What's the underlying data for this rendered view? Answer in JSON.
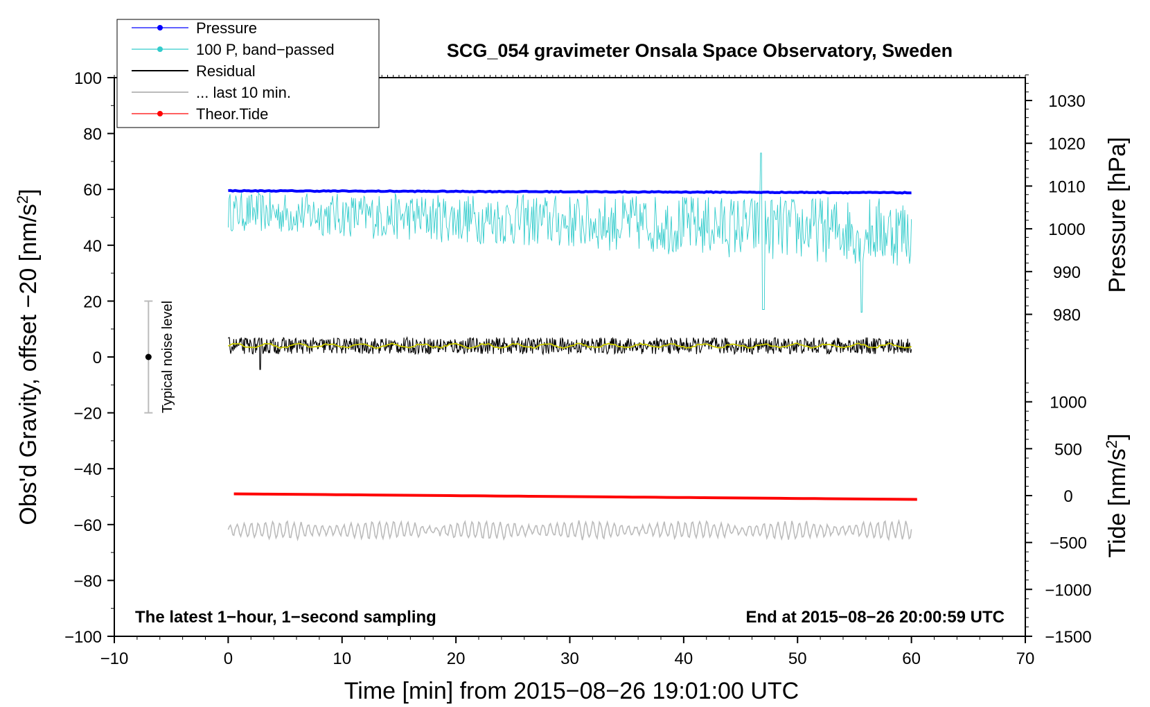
{
  "chart_data": {
    "type": "line",
    "title": "SCG_054 gravimeter Onsala Space Observatory, Sweden",
    "xlabel": "Time [min] from 2015−08−26 19:01:00 UTC",
    "ylabel_left_main": "Obs'd Gravity, offset −20 [nm/s",
    "ylabel_left_sup": "2",
    "ylabel_left_tail": "]",
    "ylabel_right_pressure": "Pressure [hPa]",
    "ylabel_right_tide_main": "Tide [nm/s",
    "ylabel_right_tide_sup": "2",
    "ylabel_right_tide_tail": "]",
    "xlim": [
      -10,
      70
    ],
    "ylim": [
      -100,
      100
    ],
    "pressure_range": [
      972,
      1036.5
    ],
    "tide_range": [
      -1500,
      1500
    ],
    "x_ticks": [
      "−10",
      "0",
      "10",
      "20",
      "30",
      "40",
      "50",
      "60",
      "70"
    ],
    "x_tick_values": [
      -10,
      0,
      10,
      20,
      30,
      40,
      50,
      60,
      70
    ],
    "y_ticks": [
      "100",
      "80",
      "60",
      "40",
      "20",
      "0",
      "−20",
      "−40",
      "−60",
      "−80",
      "−100"
    ],
    "y_tick_values": [
      100,
      80,
      60,
      40,
      20,
      0,
      -20,
      -40,
      -60,
      -80,
      -100
    ],
    "pressure_ticks": [
      "1030",
      "1020",
      "1010",
      "1000",
      "990",
      "980"
    ],
    "pressure_tick_values": [
      1030,
      1020,
      1010,
      1000,
      990,
      980
    ],
    "tide_ticks": [
      "1000",
      "500",
      "0",
      "−500",
      "−1000",
      "−1500"
    ],
    "tide_tick_values": [
      1000,
      500,
      0,
      -500,
      -1000,
      -1500
    ],
    "legend": {
      "placement": "top-left",
      "entries": [
        {
          "label": "Pressure",
          "color": "#0000ff",
          "marker": true
        },
        {
          "label": "100 P, band−passed",
          "color": "#33cccc",
          "marker": true
        },
        {
          "label": "Residual",
          "color": "#000000",
          "marker": false
        },
        {
          "label": "... last 10 min.",
          "color": "#bbbbbb",
          "marker": false
        },
        {
          "label": "Theor.Tide",
          "color": "#ff0000",
          "marker": true
        }
      ]
    },
    "annotations": {
      "bottom_left": "The latest 1−hour, 1−second sampling",
      "bottom_right": "End at 2015−08−26 20:00:59 UTC",
      "noise_label": "Typical noise level"
    },
    "noise_bar": {
      "x": -7,
      "center": 0,
      "low": -20,
      "high": 20
    },
    "series": [
      {
        "name": "Pressure",
        "color": "#0000ff",
        "x_range": [
          0,
          60
        ],
        "y_start": 59.5,
        "y_end": 58.8,
        "noise": 0.3
      },
      {
        "name": "100 P, band-passed",
        "color": "#33cccc",
        "x_range": [
          0,
          60
        ],
        "mean": 52,
        "amplitude": 7,
        "min": 17,
        "max": 73
      },
      {
        "name": "Residual",
        "color": "#000000",
        "x_range": [
          0,
          60
        ],
        "mean": 4,
        "amplitude": 3,
        "min": -4,
        "max": 11
      },
      {
        "name": "Residual smoothed",
        "color": "#cccc00",
        "x_range": [
          0,
          60
        ],
        "mean": 4,
        "amplitude": 1
      },
      {
        "name": "... last 10 min.",
        "color": "#bbbbbb",
        "x_range": [
          0,
          60
        ],
        "mean": -62,
        "amplitude": 3,
        "min": -67,
        "max": -55
      },
      {
        "name": "Theor.Tide",
        "color": "#ff0000",
        "x_range": [
          0.5,
          60.5
        ],
        "y_start": -49,
        "y_end": -51
      }
    ]
  }
}
